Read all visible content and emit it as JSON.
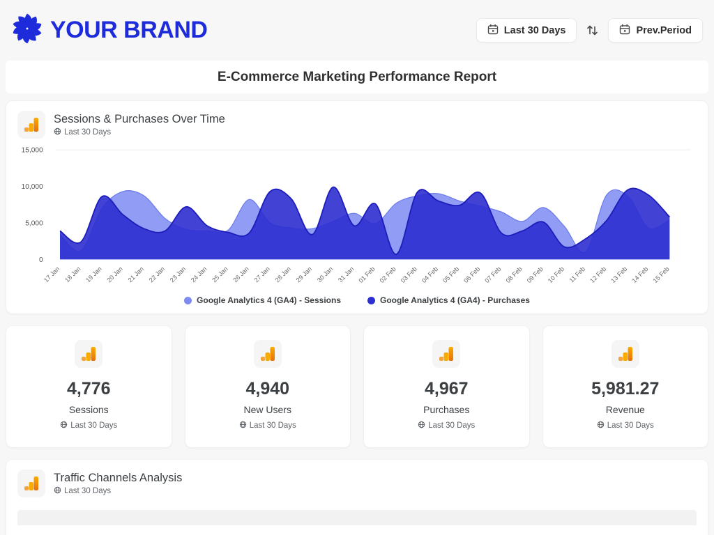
{
  "brand": {
    "name": "YOUR BRAND"
  },
  "header": {
    "date_range_button": "Last 30 Days",
    "compare_button": "Prev.Period"
  },
  "report": {
    "title": "E-Commerce Marketing Performance Report"
  },
  "chart_card": {
    "title": "Sessions & Purchases Over Time",
    "period": "Last 30 Days",
    "legend": [
      {
        "label": "Google Analytics 4 (GA4) - Sessions",
        "color": "#7e8cf2"
      },
      {
        "label": "Google Analytics 4 (GA4) - Purchases",
        "color": "#2d2fd0"
      }
    ]
  },
  "chart_data": {
    "type": "area",
    "title": "Sessions & Purchases Over Time",
    "x": [
      "17 Jan",
      "18 Jan",
      "19 Jan",
      "20 Jan",
      "21 Jan",
      "22 Jan",
      "23 Jan",
      "24 Jan",
      "25 Jan",
      "26 Jan",
      "27 Jan",
      "28 Jan",
      "29 Jan",
      "30 Jan",
      "31 Jan",
      "01 Feb",
      "02 Feb",
      "03 Feb",
      "04 Feb",
      "05 Feb",
      "06 Feb",
      "07 Feb",
      "08 Feb",
      "09 Feb",
      "10 Feb",
      "11 Feb",
      "12 Feb",
      "13 Feb",
      "14 Feb",
      "15 Feb"
    ],
    "series": [
      {
        "name": "Google Analytics 4 (GA4) - Sessions",
        "color": "#7e8cf2",
        "values": [
          3400,
          1200,
          7000,
          9300,
          8700,
          5600,
          4100,
          3900,
          4000,
          8200,
          5000,
          4300,
          4200,
          5200,
          6300,
          4900,
          7700,
          8700,
          9000,
          8000,
          7300,
          6500,
          5200,
          7100,
          4500,
          1000,
          8800,
          8700,
          4300,
          5400
        ]
      },
      {
        "name": "Google Analytics 4 (GA4) - Purchases",
        "color": "#2d2fd0",
        "values": [
          3900,
          2400,
          8600,
          6100,
          4200,
          3900,
          7200,
          4600,
          3700,
          3600,
          9300,
          8300,
          3400,
          9900,
          4600,
          7600,
          700,
          9200,
          8000,
          7400,
          9100,
          3600,
          3900,
          5100,
          1700,
          2800,
          5300,
          9500,
          8800,
          5800
        ]
      }
    ],
    "ylim": [
      0,
      15000
    ],
    "yticks": [
      0,
      5000,
      10000,
      15000
    ],
    "ytick_labels": [
      "0",
      "5,000",
      "10,000",
      "15,000"
    ],
    "gridlines_at": [
      15000
    ],
    "legend_position": "bottom",
    "smooth": true,
    "xlabel": "",
    "ylabel": ""
  },
  "kpis": [
    {
      "value": "4,776",
      "label": "Sessions",
      "period": "Last 30 Days"
    },
    {
      "value": "4,940",
      "label": "New Users",
      "period": "Last 30 Days"
    },
    {
      "value": "4,967",
      "label": "Purchases",
      "period": "Last 30 Days"
    },
    {
      "value": "5,981.27",
      "label": "Revenue",
      "period": "Last 30 Days"
    }
  ],
  "traffic_card": {
    "title": "Traffic Channels Analysis",
    "period": "Last 30 Days"
  },
  "colors": {
    "brand_blue": "#1d2bdb",
    "sessions_series": "#7e8cf2",
    "purchases_series": "#2d2fd0",
    "ga_icon_amber": "#f9ab00",
    "ga_icon_orange": "#e8710a",
    "page_background": "#f7f7f8",
    "card_background": "#ffffff"
  }
}
